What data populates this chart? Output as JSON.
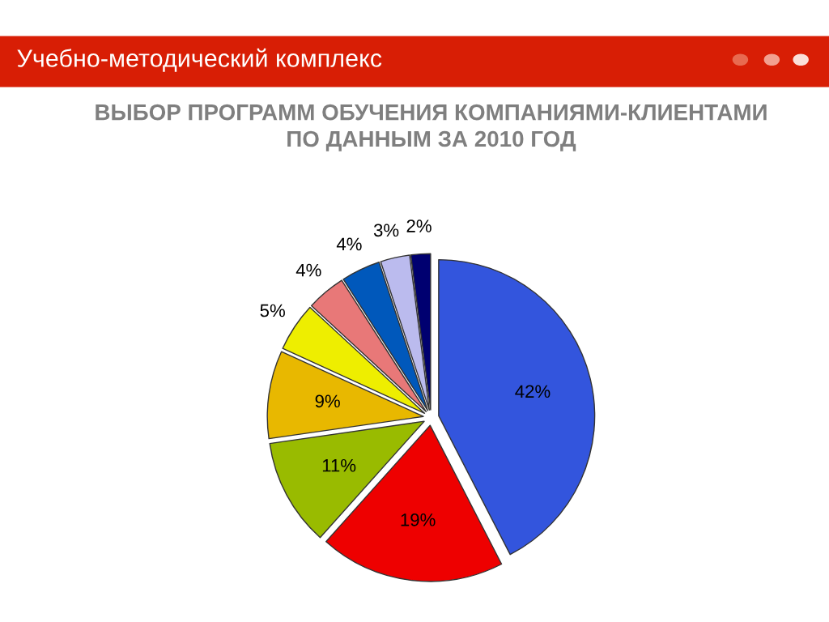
{
  "chart_data": {
    "type": "pie",
    "title": "ВЫБОР ПРОГРАММ ОБУЧЕНИЯ КОМПАНИЯМИ-КЛИЕНТАМИ\nПО ДАННЫМ ЗА 2010 ГОД",
    "annotations": [
      "Учебно-методический комплекс"
    ],
    "categories": [
      null,
      null,
      null,
      null,
      null,
      null,
      null,
      null,
      null
    ],
    "values": [
      42,
      19,
      11,
      9,
      5,
      4,
      4,
      3,
      2
    ],
    "colors": [
      "#3355dd",
      "#ee0000",
      "#99bb00",
      "#e8b800",
      "#eeee00",
      "#e87878",
      "#0058bb",
      "#bbbbee",
      "#000070"
    ],
    "value_labels": [
      "42%",
      "19%",
      "11%",
      "9%",
      "5%",
      "4%",
      "4%",
      "3%",
      "2%"
    ]
  }
}
